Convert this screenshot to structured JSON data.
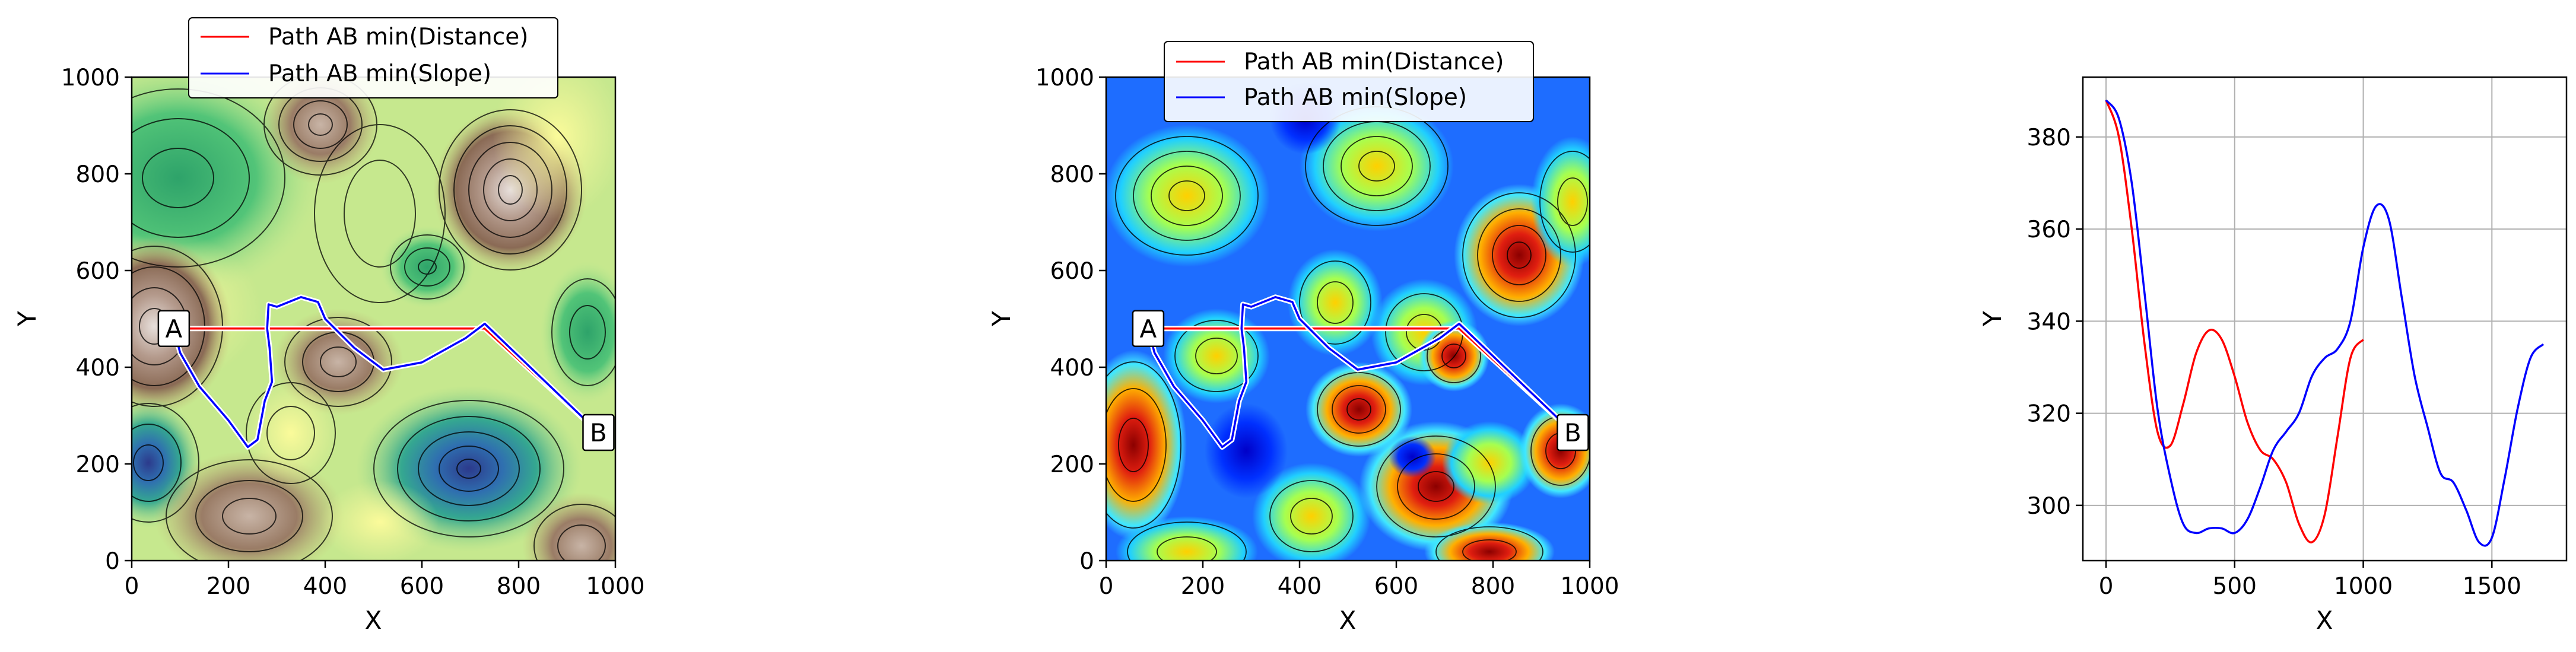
{
  "chart_data": [
    {
      "type": "contour",
      "xlabel": "X",
      "ylabel": "Y",
      "xlim": [
        0,
        1000
      ],
      "ylim": [
        0,
        1000
      ],
      "x_ticks": [
        "0",
        "200",
        "400",
        "600",
        "800",
        "1000"
      ],
      "y_ticks": [
        "0",
        "200",
        "400",
        "600",
        "800",
        "1000"
      ],
      "colormap": "terrain (green / yellow / brown / white), black contour lines",
      "legend": {
        "placement": "top-center",
        "entries": [
          "Path AB min(Distance)",
          "Path AB min(Slope)"
        ]
      },
      "points": [
        {
          "label": "A",
          "x": 87,
          "y": 480
        },
        {
          "label": "B",
          "x": 965,
          "y": 265
        }
      ],
      "series": [
        {
          "name": "Path AB min(Distance)",
          "color": "#ff0000",
          "x": [
            87,
            730,
            965
          ],
          "y": [
            480,
            480,
            265
          ]
        },
        {
          "name": "Path AB min(Slope)",
          "color": "#0000ff",
          "x": [
            87,
            100,
            140,
            200,
            240,
            260,
            275,
            290,
            285,
            280,
            283,
            300,
            350,
            385,
            400,
            460,
            520,
            600,
            690,
            730,
            965
          ],
          "y": [
            480,
            430,
            360,
            290,
            235,
            250,
            330,
            370,
            440,
            480,
            530,
            525,
            545,
            535,
            500,
            440,
            395,
            410,
            460,
            490,
            265
          ]
        }
      ]
    },
    {
      "type": "contour",
      "xlabel": "X",
      "ylabel": "Y",
      "xlim": [
        0,
        1000
      ],
      "ylim": [
        0,
        1000
      ],
      "x_ticks": [
        "0",
        "200",
        "400",
        "600",
        "800",
        "1000"
      ],
      "y_ticks": [
        "0",
        "200",
        "400",
        "600",
        "800",
        "1000"
      ],
      "colormap": "jet (slope magnitude: blue low, red high), black contour lines",
      "legend": {
        "placement": "top-center",
        "entries": [
          "Path AB min(Distance)",
          "Path AB min(Slope)"
        ]
      },
      "points": [
        {
          "label": "A",
          "x": 87,
          "y": 480
        },
        {
          "label": "B",
          "x": 965,
          "y": 265
        }
      ],
      "series": [
        {
          "name": "Path AB min(Distance)",
          "color": "#ff0000",
          "x": [
            87,
            730,
            965
          ],
          "y": [
            480,
            480,
            265
          ]
        },
        {
          "name": "Path AB min(Slope)",
          "color": "#0000ff",
          "x": [
            87,
            100,
            140,
            200,
            240,
            260,
            275,
            290,
            285,
            280,
            283,
            300,
            350,
            385,
            400,
            460,
            520,
            600,
            690,
            730,
            965
          ],
          "y": [
            480,
            430,
            360,
            290,
            235,
            250,
            330,
            370,
            440,
            480,
            530,
            525,
            545,
            535,
            500,
            440,
            395,
            410,
            460,
            490,
            265
          ]
        }
      ]
    },
    {
      "type": "line",
      "xlabel": "X",
      "ylabel": "Y",
      "xlim": [
        -90,
        1790
      ],
      "ylim": [
        288,
        393
      ],
      "x_ticks": [
        0,
        500,
        1000,
        1500
      ],
      "y_ticks": [
        300,
        320,
        340,
        360,
        380
      ],
      "grid": true,
      "series": [
        {
          "color": "#ff0000",
          "x": [
            0,
            50,
            100,
            150,
            200,
            250,
            300,
            350,
            400,
            450,
            500,
            550,
            600,
            650,
            700,
            750,
            800,
            850,
            900,
            950,
            1000
          ],
          "y": [
            388,
            380,
            360,
            335,
            316,
            313,
            322,
            333,
            338,
            336,
            328,
            318,
            312,
            310,
            305,
            296,
            292,
            298,
            315,
            332,
            336
          ]
        },
        {
          "color": "#0000ff",
          "x": [
            0,
            50,
            100,
            150,
            200,
            250,
            300,
            350,
            400,
            450,
            500,
            550,
            600,
            650,
            700,
            750,
            800,
            850,
            900,
            950,
            1000,
            1050,
            1100,
            1150,
            1200,
            1250,
            1300,
            1350,
            1400,
            1450,
            1500,
            1550,
            1600,
            1650,
            1700
          ],
          "y": [
            388,
            384,
            370,
            346,
            321,
            306,
            296,
            294,
            295,
            295,
            294,
            297,
            304,
            312,
            316,
            320,
            328,
            332,
            334,
            340,
            356,
            365,
            362,
            345,
            328,
            317,
            307,
            305,
            299,
            292,
            293,
            306,
            321,
            332,
            335
          ]
        }
      ]
    }
  ]
}
